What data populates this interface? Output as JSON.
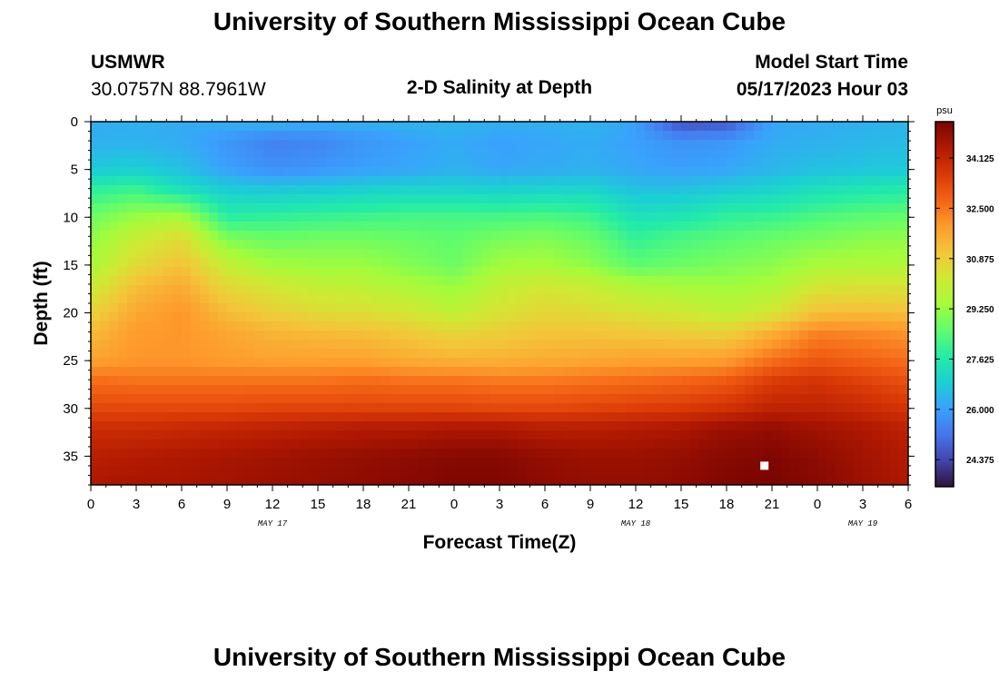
{
  "page": {
    "title_top": "University of Southern Mississippi Ocean Cube",
    "title_bottom": "University of Southern Mississippi Ocean Cube"
  },
  "header": {
    "station": "USMWR",
    "coords": "30.0757N  88.7961W",
    "plot_title": "2-D Salinity at Depth",
    "model_start_label": "Model Start Time",
    "model_start_value": "05/17/2023 Hour 03"
  },
  "colors": {
    "colormap": [
      "#30123b",
      "#4145ab",
      "#4675ed",
      "#39a2fc",
      "#1bcfd4",
      "#24eca6",
      "#61fc6c",
      "#a4fc3b",
      "#d1e834",
      "#f3c63a",
      "#fe9b2d",
      "#f36315",
      "#d93806",
      "#b11901",
      "#7a0402"
    ]
  },
  "chart_data": {
    "type": "heatmap",
    "title": "2-D Salinity at Depth",
    "xlabel": "Forecast Time(Z)",
    "ylabel": "Depth (ft)",
    "x_ticks": [
      "0",
      "3",
      "6",
      "9",
      "12",
      "15",
      "18",
      "21",
      "0",
      "3",
      "6",
      "9",
      "12",
      "15",
      "18",
      "21",
      "0",
      "3",
      "6"
    ],
    "x_range_hours": [
      0,
      54
    ],
    "date_labels": [
      {
        "text": "MAY 17",
        "hour": 12
      },
      {
        "text": "MAY 18",
        "hour": 36
      },
      {
        "text": "MAY 19",
        "hour": 51
      }
    ],
    "y_ticks": [
      "0",
      "5",
      "10",
      "15",
      "20",
      "25",
      "30",
      "35"
    ],
    "y_range_ft": [
      0,
      38
    ],
    "colorbar": {
      "unit": "psu",
      "min": 23.5,
      "max": 35.3,
      "tick_values": [
        24.375,
        26.0,
        27.625,
        29.25,
        30.875,
        32.5,
        34.125
      ],
      "tick_labels": [
        "24.375",
        "26.000",
        "27.625",
        "29.250",
        "30.875",
        "32.500",
        "34.125"
      ]
    },
    "marker": {
      "hour": 44.5,
      "depth_ft": 36
    },
    "grid_hours": [
      0,
      3,
      6,
      9,
      12,
      15,
      18,
      21,
      24,
      27,
      30,
      33,
      36,
      39,
      42,
      45,
      48,
      51,
      54
    ],
    "grid_depths_ft": [
      0,
      2,
      5,
      7,
      10,
      12,
      15,
      17,
      20,
      22,
      25,
      27,
      30,
      32,
      35,
      38
    ],
    "values_psu": [
      [
        26.2,
        26.3,
        26.2,
        26.3,
        26.4,
        26.3,
        26.3,
        26.4,
        26.4,
        26.3,
        26.3,
        26.4,
        26.0,
        24.5,
        24.6,
        26.1,
        26.2,
        26.3,
        26.4
      ],
      [
        26.3,
        26.3,
        26.2,
        25.8,
        25.4,
        25.5,
        25.8,
        26.0,
        26.2,
        26.0,
        26.1,
        26.2,
        26.0,
        25.7,
        25.8,
        26.2,
        26.3,
        26.4,
        26.5
      ],
      [
        26.8,
        26.9,
        26.6,
        26.0,
        25.7,
        25.8,
        26.0,
        26.1,
        26.3,
        26.1,
        26.2,
        26.3,
        26.1,
        26.0,
        26.1,
        26.4,
        26.6,
        26.7,
        26.8
      ],
      [
        27.8,
        28.0,
        27.3,
        26.8,
        26.7,
        26.8,
        26.9,
        27.0,
        27.0,
        26.9,
        27.0,
        27.0,
        26.6,
        26.6,
        26.8,
        27.0,
        27.3,
        27.5,
        27.6
      ],
      [
        28.7,
        29.3,
        29.5,
        27.8,
        27.9,
        28.0,
        28.1,
        28.2,
        28.2,
        28.2,
        28.3,
        28.1,
        27.4,
        27.5,
        27.9,
        28.0,
        28.3,
        28.5,
        28.6
      ],
      [
        29.1,
        30.0,
        30.5,
        28.8,
        28.6,
        28.7,
        28.7,
        28.6,
        28.5,
        28.8,
        28.9,
        28.6,
        27.9,
        28.2,
        28.4,
        28.6,
        28.8,
        29.0,
        29.1
      ],
      [
        29.5,
        30.6,
        31.2,
        30.0,
        29.4,
        29.3,
        29.3,
        29.0,
        28.7,
        29.4,
        29.5,
        29.1,
        28.5,
        28.7,
        28.9,
        29.1,
        29.5,
        29.6,
        29.6
      ],
      [
        30.0,
        31.2,
        31.6,
        30.6,
        30.2,
        29.9,
        29.8,
        29.5,
        29.2,
        29.9,
        30.2,
        30.0,
        29.5,
        29.4,
        29.3,
        29.5,
        30.2,
        30.3,
        30.3
      ],
      [
        30.8,
        31.7,
        32.0,
        31.3,
        30.9,
        30.6,
        30.5,
        30.3,
        29.9,
        30.4,
        30.7,
        30.6,
        30.4,
        30.2,
        29.9,
        30.3,
        31.2,
        31.3,
        31.2
      ],
      [
        31.3,
        31.9,
        32.0,
        31.7,
        31.4,
        31.3,
        31.2,
        31.0,
        30.7,
        30.9,
        31.1,
        31.1,
        31.0,
        30.9,
        30.8,
        31.5,
        32.3,
        32.2,
        32.0
      ],
      [
        31.8,
        32.0,
        32.0,
        31.9,
        31.8,
        31.8,
        31.8,
        31.6,
        31.5,
        31.5,
        31.6,
        31.7,
        31.8,
        31.8,
        31.9,
        32.6,
        33.0,
        32.8,
        32.6
      ],
      [
        32.6,
        32.5,
        32.5,
        32.5,
        32.5,
        32.5,
        32.6,
        32.5,
        32.5,
        32.4,
        32.4,
        32.5,
        32.6,
        32.7,
        32.9,
        33.5,
        33.7,
        33.4,
        33.1
      ],
      [
        33.3,
        33.3,
        33.3,
        33.3,
        33.4,
        33.4,
        33.4,
        33.4,
        33.4,
        33.3,
        33.3,
        33.4,
        33.5,
        33.6,
        33.8,
        34.2,
        34.2,
        34.0,
        33.7
      ],
      [
        33.9,
        33.9,
        34.0,
        34.1,
        34.2,
        34.3,
        34.4,
        34.4,
        34.5,
        34.5,
        34.3,
        34.3,
        34.4,
        34.5,
        34.8,
        34.9,
        34.7,
        34.5,
        34.2
      ],
      [
        34.3,
        34.4,
        34.5,
        34.6,
        34.7,
        34.8,
        34.9,
        35.0,
        35.1,
        35.1,
        34.9,
        34.8,
        34.8,
        34.9,
        35.1,
        35.2,
        35.0,
        34.7,
        34.4
      ],
      [
        34.5,
        34.6,
        34.6,
        34.7,
        34.8,
        34.9,
        35.0,
        35.1,
        35.2,
        35.2,
        35.0,
        34.9,
        34.9,
        35.0,
        35.2,
        35.3,
        35.1,
        34.8,
        34.5
      ]
    ]
  }
}
